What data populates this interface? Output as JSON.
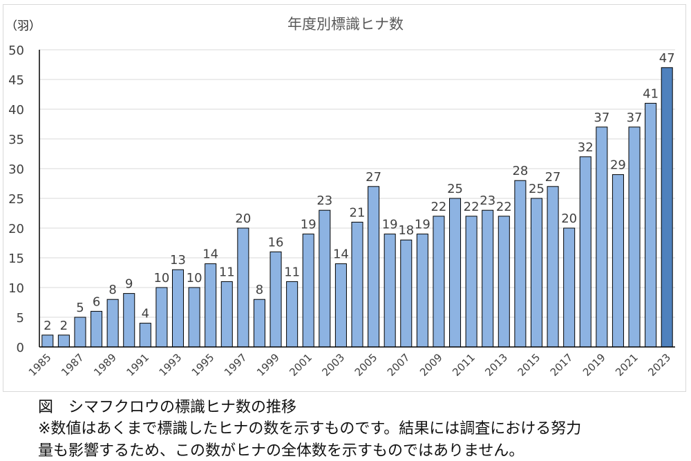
{
  "chart_data": {
    "type": "bar",
    "title": "年度別標識ヒナ数",
    "ylabel": "（羽）",
    "xlabel": "",
    "ylim": [
      0,
      50
    ],
    "yticks": [
      0,
      5,
      10,
      15,
      20,
      25,
      30,
      35,
      40,
      45,
      50
    ],
    "grid": true,
    "categories": [
      "1985",
      "1986",
      "1987",
      "1988",
      "1989",
      "1990",
      "1991",
      "1992",
      "1993",
      "1994",
      "1995",
      "1996",
      "1997",
      "1998",
      "1999",
      "2000",
      "2001",
      "2002",
      "2003",
      "2004",
      "2005",
      "2006",
      "2007",
      "2008",
      "2009",
      "2010",
      "2011",
      "2012",
      "2013",
      "2014",
      "2015",
      "2016",
      "2017",
      "2018",
      "2019",
      "2020",
      "2021",
      "2022",
      "2023"
    ],
    "xtick_labels": [
      "1985",
      "1987",
      "1989",
      "1991",
      "1993",
      "1995",
      "1997",
      "1999",
      "2001",
      "2003",
      "2005",
      "2007",
      "2009",
      "2011",
      "2013",
      "2015",
      "2017",
      "2019",
      "2021",
      "2023"
    ],
    "values": [
      2,
      2,
      5,
      6,
      8,
      9,
      4,
      10,
      13,
      10,
      14,
      11,
      20,
      8,
      16,
      11,
      19,
      23,
      14,
      21,
      27,
      19,
      18,
      19,
      22,
      25,
      22,
      23,
      22,
      28,
      25,
      27,
      20,
      32,
      37,
      29,
      37,
      41,
      47
    ],
    "colors": {
      "bar": "#8DB3E2",
      "highlight": "#4F81BD",
      "edge": "#000000",
      "grid": "#d9d9d9",
      "text": "#404040"
    },
    "highlight_category": "2023"
  },
  "caption": {
    "figure_title": "図　シマフクロウの標識ヒナ数の推移",
    "note_line1": "※数値はあくまで標識したヒナの数を示すものです。結果には調査における努力",
    "note_line2": "量も影響するため、この数がヒナの全体数を示すものではありません。"
  }
}
